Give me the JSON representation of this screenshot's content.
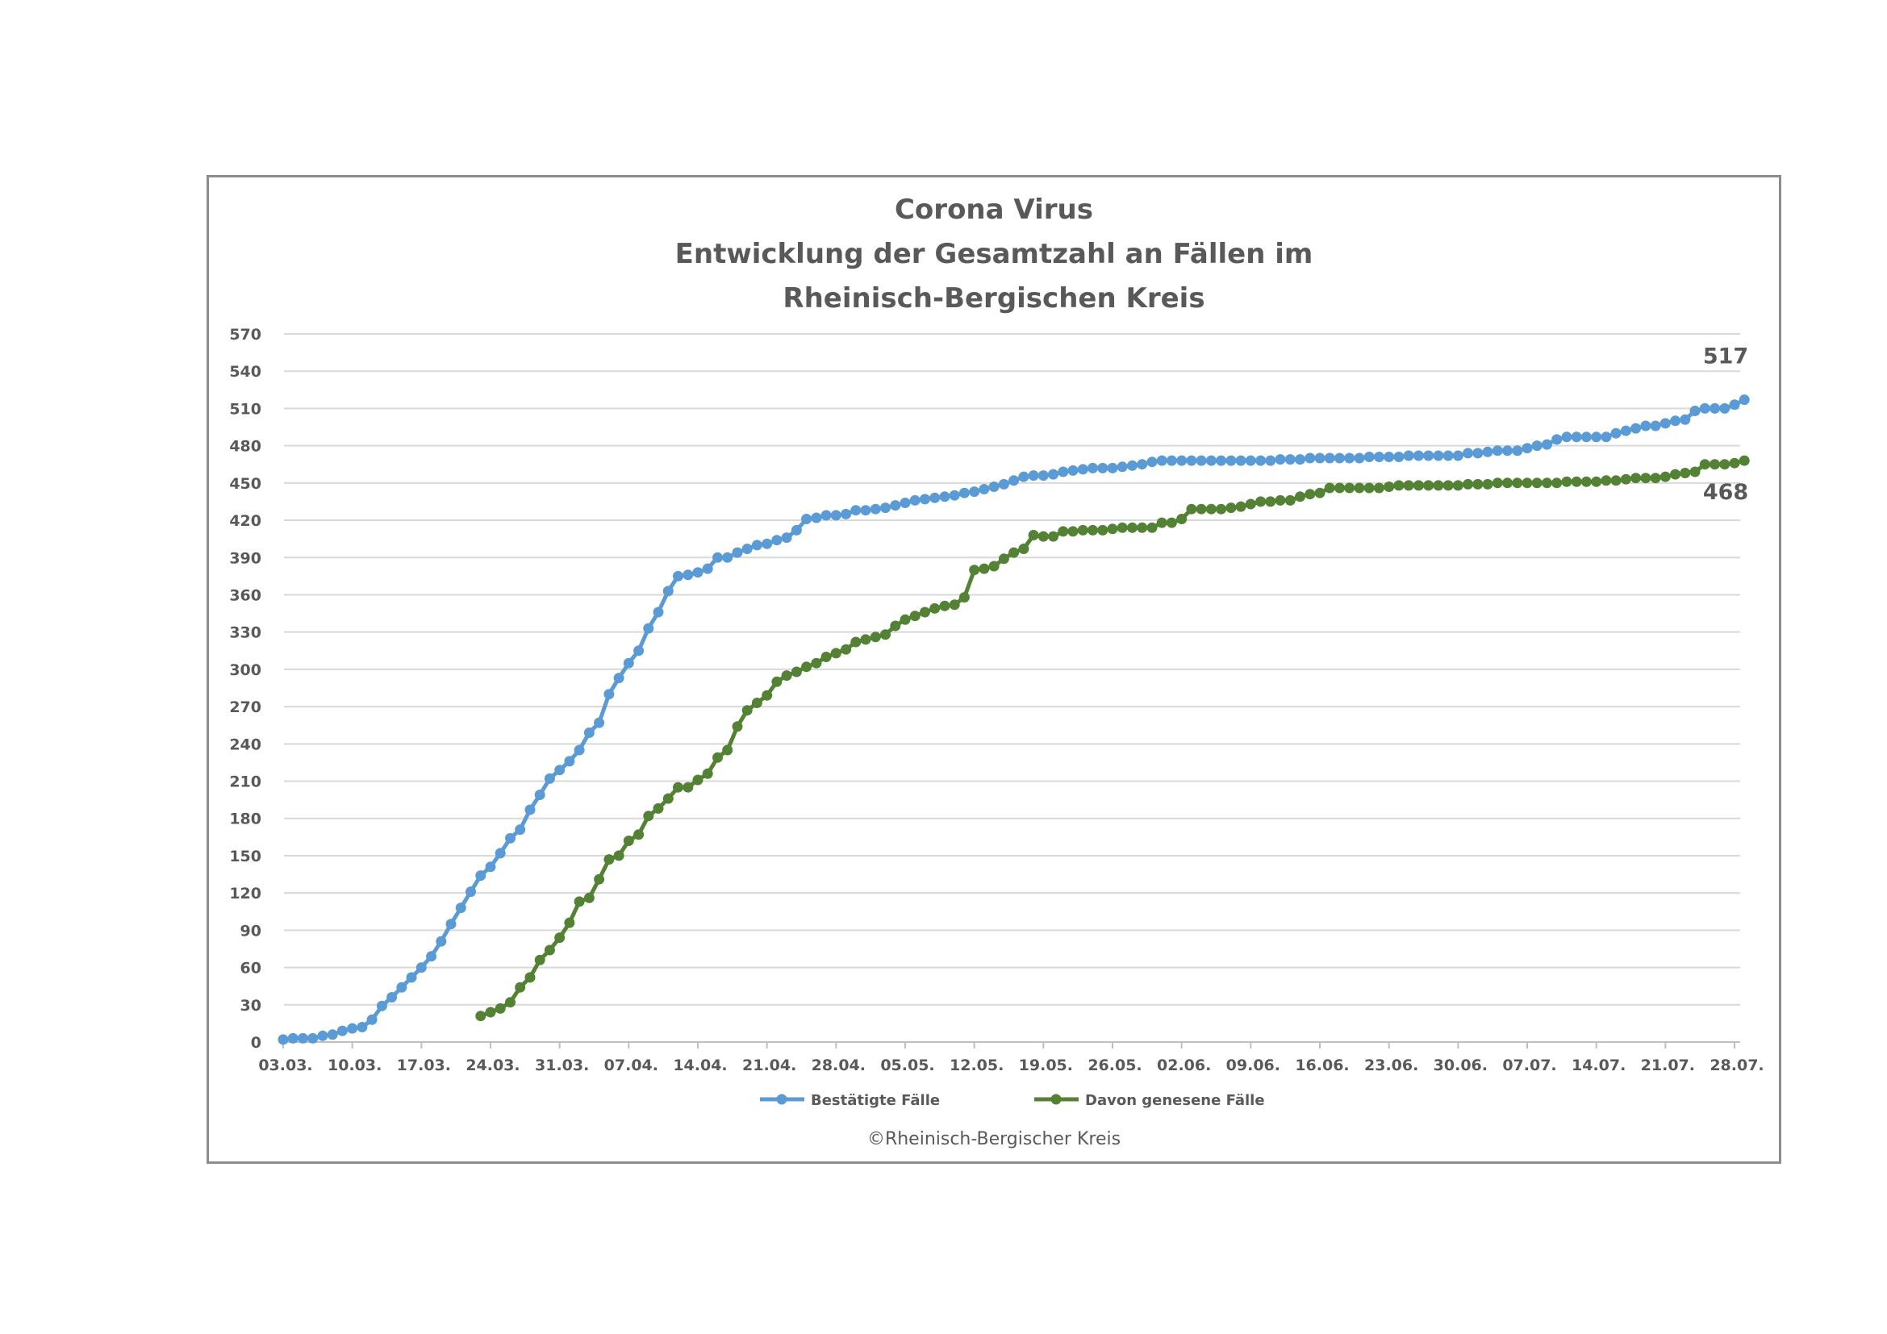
{
  "chart_data": {
    "type": "line",
    "title": [
      "Corona Virus",
      "Entwicklung der Gesamtzahl an Fällen im",
      "Rheinisch-Bergischen Kreis"
    ],
    "xlabel": "",
    "ylabel": "",
    "ylim": [
      0,
      570
    ],
    "y_ticks": [
      0,
      30,
      60,
      90,
      120,
      150,
      180,
      210,
      240,
      270,
      300,
      330,
      360,
      390,
      420,
      450,
      480,
      510,
      540,
      570
    ],
    "x_tick_labels": [
      "03.03.",
      "10.03.",
      "17.03.",
      "24.03.",
      "31.03.",
      "07.04.",
      "14.04.",
      "21.04.",
      "28.04.",
      "05.05.",
      "12.05.",
      "19.05.",
      "26.05.",
      "02.06.",
      "09.06.",
      "16.06.",
      "23.06.",
      "30.06.",
      "07.07.",
      "14.07.",
      "21.07.",
      "28.07."
    ],
    "x_range": [
      "2020-03-03",
      "2020-07-28"
    ],
    "grid": true,
    "legend_position": "bottom",
    "series": [
      {
        "name": "Bestätigte Fälle",
        "color": "#5b9bd5",
        "end_label": "517",
        "points": [
          [
            "2020-03-03",
            2
          ],
          [
            "2020-03-04",
            3
          ],
          [
            "2020-03-05",
            3
          ],
          [
            "2020-03-06",
            3
          ],
          [
            "2020-03-07",
            5
          ],
          [
            "2020-03-08",
            6
          ],
          [
            "2020-03-09",
            9
          ],
          [
            "2020-03-10",
            11
          ],
          [
            "2020-03-11",
            12
          ],
          [
            "2020-03-12",
            18
          ],
          [
            "2020-03-13",
            29
          ],
          [
            "2020-03-14",
            36
          ],
          [
            "2020-03-15",
            44
          ],
          [
            "2020-03-16",
            52
          ],
          [
            "2020-03-17",
            60
          ],
          [
            "2020-03-18",
            69
          ],
          [
            "2020-03-19",
            81
          ],
          [
            "2020-03-20",
            95
          ],
          [
            "2020-03-21",
            108
          ],
          [
            "2020-03-22",
            121
          ],
          [
            "2020-03-23",
            134
          ],
          [
            "2020-03-24",
            141
          ],
          [
            "2020-03-25",
            152
          ],
          [
            "2020-03-26",
            164
          ],
          [
            "2020-03-27",
            171
          ],
          [
            "2020-03-28",
            187
          ],
          [
            "2020-03-29",
            199
          ],
          [
            "2020-03-30",
            212
          ],
          [
            "2020-03-31",
            219
          ],
          [
            "2020-04-01",
            226
          ],
          [
            "2020-04-02",
            235
          ],
          [
            "2020-04-03",
            249
          ],
          [
            "2020-04-04",
            257
          ],
          [
            "2020-04-05",
            280
          ],
          [
            "2020-04-06",
            293
          ],
          [
            "2020-04-07",
            305
          ],
          [
            "2020-04-08",
            315
          ],
          [
            "2020-04-09",
            333
          ],
          [
            "2020-04-10",
            346
          ],
          [
            "2020-04-11",
            363
          ],
          [
            "2020-04-12",
            375
          ],
          [
            "2020-04-13",
            376
          ],
          [
            "2020-04-14",
            378
          ],
          [
            "2020-04-15",
            381
          ],
          [
            "2020-04-16",
            390
          ],
          [
            "2020-04-17",
            390
          ],
          [
            "2020-04-18",
            394
          ],
          [
            "2020-04-19",
            397
          ],
          [
            "2020-04-20",
            400
          ],
          [
            "2020-04-21",
            401
          ],
          [
            "2020-04-22",
            404
          ],
          [
            "2020-04-23",
            406
          ],
          [
            "2020-04-24",
            412
          ],
          [
            "2020-04-25",
            421
          ],
          [
            "2020-04-26",
            422
          ],
          [
            "2020-04-27",
            424
          ],
          [
            "2020-04-28",
            424
          ],
          [
            "2020-04-29",
            425
          ],
          [
            "2020-04-30",
            428
          ],
          [
            "2020-05-01",
            428
          ],
          [
            "2020-05-02",
            429
          ],
          [
            "2020-05-03",
            430
          ],
          [
            "2020-05-04",
            432
          ],
          [
            "2020-05-05",
            434
          ],
          [
            "2020-05-06",
            436
          ],
          [
            "2020-05-07",
            437
          ],
          [
            "2020-05-08",
            438
          ],
          [
            "2020-05-09",
            439
          ],
          [
            "2020-05-10",
            440
          ],
          [
            "2020-05-11",
            442
          ],
          [
            "2020-05-12",
            443
          ],
          [
            "2020-05-13",
            445
          ],
          [
            "2020-05-14",
            447
          ],
          [
            "2020-05-15",
            449
          ],
          [
            "2020-05-16",
            452
          ],
          [
            "2020-05-17",
            455
          ],
          [
            "2020-05-18",
            456
          ],
          [
            "2020-05-19",
            456
          ],
          [
            "2020-05-20",
            457
          ],
          [
            "2020-05-21",
            459
          ],
          [
            "2020-05-22",
            460
          ],
          [
            "2020-05-23",
            461
          ],
          [
            "2020-05-24",
            462
          ],
          [
            "2020-05-25",
            462
          ],
          [
            "2020-05-26",
            462
          ],
          [
            "2020-05-27",
            463
          ],
          [
            "2020-05-28",
            464
          ],
          [
            "2020-05-29",
            465
          ],
          [
            "2020-05-30",
            467
          ],
          [
            "2020-05-31",
            468
          ],
          [
            "2020-06-01",
            468
          ],
          [
            "2020-06-02",
            468
          ],
          [
            "2020-06-03",
            468
          ],
          [
            "2020-06-04",
            468
          ],
          [
            "2020-06-05",
            468
          ],
          [
            "2020-06-06",
            468
          ],
          [
            "2020-06-07",
            468
          ],
          [
            "2020-06-08",
            468
          ],
          [
            "2020-06-09",
            468
          ],
          [
            "2020-06-10",
            468
          ],
          [
            "2020-06-11",
            468
          ],
          [
            "2020-06-12",
            469
          ],
          [
            "2020-06-13",
            469
          ],
          [
            "2020-06-14",
            469
          ],
          [
            "2020-06-15",
            470
          ],
          [
            "2020-06-16",
            470
          ],
          [
            "2020-06-17",
            470
          ],
          [
            "2020-06-18",
            470
          ],
          [
            "2020-06-19",
            470
          ],
          [
            "2020-06-20",
            470
          ],
          [
            "2020-06-21",
            471
          ],
          [
            "2020-06-22",
            471
          ],
          [
            "2020-06-23",
            471
          ],
          [
            "2020-06-24",
            471
          ],
          [
            "2020-06-25",
            472
          ],
          [
            "2020-06-26",
            472
          ],
          [
            "2020-06-27",
            472
          ],
          [
            "2020-06-28",
            472
          ],
          [
            "2020-06-29",
            472
          ],
          [
            "2020-06-30",
            472
          ],
          [
            "2020-07-01",
            474
          ],
          [
            "2020-07-02",
            474
          ],
          [
            "2020-07-03",
            475
          ],
          [
            "2020-07-04",
            476
          ],
          [
            "2020-07-05",
            476
          ],
          [
            "2020-07-06",
            476
          ],
          [
            "2020-07-07",
            478
          ],
          [
            "2020-07-08",
            480
          ],
          [
            "2020-07-09",
            481
          ],
          [
            "2020-07-10",
            485
          ],
          [
            "2020-07-11",
            487
          ],
          [
            "2020-07-12",
            487
          ],
          [
            "2020-07-13",
            487
          ],
          [
            "2020-07-14",
            487
          ],
          [
            "2020-07-15",
            487
          ],
          [
            "2020-07-16",
            490
          ],
          [
            "2020-07-17",
            492
          ],
          [
            "2020-07-18",
            494
          ],
          [
            "2020-07-19",
            496
          ],
          [
            "2020-07-20",
            496
          ],
          [
            "2020-07-21",
            498
          ],
          [
            "2020-07-22",
            500
          ],
          [
            "2020-07-23",
            501
          ],
          [
            "2020-07-24",
            508
          ],
          [
            "2020-07-25",
            510
          ],
          [
            "2020-07-26",
            510
          ],
          [
            "2020-07-27",
            510
          ],
          [
            "2020-07-28",
            513
          ],
          [
            "2020-07-29",
            517
          ]
        ]
      },
      {
        "name": "Davon genesene Fälle",
        "color": "#548235",
        "end_label": "468",
        "points": [
          [
            "2020-03-23",
            21
          ],
          [
            "2020-03-24",
            24
          ],
          [
            "2020-03-25",
            27
          ],
          [
            "2020-03-26",
            32
          ],
          [
            "2020-03-27",
            44
          ],
          [
            "2020-03-28",
            52
          ],
          [
            "2020-03-29",
            66
          ],
          [
            "2020-03-30",
            74
          ],
          [
            "2020-03-31",
            84
          ],
          [
            "2020-04-01",
            96
          ],
          [
            "2020-04-02",
            113
          ],
          [
            "2020-04-03",
            116
          ],
          [
            "2020-04-04",
            131
          ],
          [
            "2020-04-05",
            147
          ],
          [
            "2020-04-06",
            150
          ],
          [
            "2020-04-07",
            162
          ],
          [
            "2020-04-08",
            167
          ],
          [
            "2020-04-09",
            182
          ],
          [
            "2020-04-10",
            188
          ],
          [
            "2020-04-11",
            196
          ],
          [
            "2020-04-12",
            205
          ],
          [
            "2020-04-13",
            205
          ],
          [
            "2020-04-14",
            211
          ],
          [
            "2020-04-15",
            216
          ],
          [
            "2020-04-16",
            229
          ],
          [
            "2020-04-17",
            235
          ],
          [
            "2020-04-18",
            254
          ],
          [
            "2020-04-19",
            267
          ],
          [
            "2020-04-20",
            273
          ],
          [
            "2020-04-21",
            279
          ],
          [
            "2020-04-22",
            290
          ],
          [
            "2020-04-23",
            295
          ],
          [
            "2020-04-24",
            298
          ],
          [
            "2020-04-25",
            302
          ],
          [
            "2020-04-26",
            305
          ],
          [
            "2020-04-27",
            310
          ],
          [
            "2020-04-28",
            313
          ],
          [
            "2020-04-29",
            316
          ],
          [
            "2020-04-30",
            322
          ],
          [
            "2020-05-01",
            324
          ],
          [
            "2020-05-02",
            326
          ],
          [
            "2020-05-03",
            328
          ],
          [
            "2020-05-04",
            335
          ],
          [
            "2020-05-05",
            340
          ],
          [
            "2020-05-06",
            343
          ],
          [
            "2020-05-07",
            346
          ],
          [
            "2020-05-08",
            349
          ],
          [
            "2020-05-09",
            351
          ],
          [
            "2020-05-10",
            352
          ],
          [
            "2020-05-11",
            358
          ],
          [
            "2020-05-12",
            380
          ],
          [
            "2020-05-13",
            381
          ],
          [
            "2020-05-14",
            383
          ],
          [
            "2020-05-15",
            389
          ],
          [
            "2020-05-16",
            394
          ],
          [
            "2020-05-17",
            397
          ],
          [
            "2020-05-18",
            408
          ],
          [
            "2020-05-19",
            407
          ],
          [
            "2020-05-20",
            407
          ],
          [
            "2020-05-21",
            411
          ],
          [
            "2020-05-22",
            411
          ],
          [
            "2020-05-23",
            412
          ],
          [
            "2020-05-24",
            412
          ],
          [
            "2020-05-25",
            412
          ],
          [
            "2020-05-26",
            413
          ],
          [
            "2020-05-27",
            414
          ],
          [
            "2020-05-28",
            414
          ],
          [
            "2020-05-29",
            414
          ],
          [
            "2020-05-30",
            414
          ],
          [
            "2020-05-31",
            418
          ],
          [
            "2020-06-01",
            418
          ],
          [
            "2020-06-02",
            421
          ],
          [
            "2020-06-03",
            429
          ],
          [
            "2020-06-04",
            429
          ],
          [
            "2020-06-05",
            429
          ],
          [
            "2020-06-06",
            429
          ],
          [
            "2020-06-07",
            430
          ],
          [
            "2020-06-08",
            431
          ],
          [
            "2020-06-09",
            433
          ],
          [
            "2020-06-10",
            435
          ],
          [
            "2020-06-11",
            435
          ],
          [
            "2020-06-12",
            436
          ],
          [
            "2020-06-13",
            436
          ],
          [
            "2020-06-14",
            439
          ],
          [
            "2020-06-15",
            441
          ],
          [
            "2020-06-16",
            442
          ],
          [
            "2020-06-17",
            446
          ],
          [
            "2020-06-18",
            446
          ],
          [
            "2020-06-19",
            446
          ],
          [
            "2020-06-20",
            446
          ],
          [
            "2020-06-21",
            446
          ],
          [
            "2020-06-22",
            446
          ],
          [
            "2020-06-23",
            447
          ],
          [
            "2020-06-24",
            448
          ],
          [
            "2020-06-25",
            448
          ],
          [
            "2020-06-26",
            448
          ],
          [
            "2020-06-27",
            448
          ],
          [
            "2020-06-28",
            448
          ],
          [
            "2020-06-29",
            448
          ],
          [
            "2020-06-30",
            448
          ],
          [
            "2020-07-01",
            449
          ],
          [
            "2020-07-02",
            449
          ],
          [
            "2020-07-03",
            449
          ],
          [
            "2020-07-04",
            450
          ],
          [
            "2020-07-05",
            450
          ],
          [
            "2020-07-06",
            450
          ],
          [
            "2020-07-07",
            450
          ],
          [
            "2020-07-08",
            450
          ],
          [
            "2020-07-09",
            450
          ],
          [
            "2020-07-10",
            450
          ],
          [
            "2020-07-11",
            451
          ],
          [
            "2020-07-12",
            451
          ],
          [
            "2020-07-13",
            451
          ],
          [
            "2020-07-14",
            451
          ],
          [
            "2020-07-15",
            452
          ],
          [
            "2020-07-16",
            452
          ],
          [
            "2020-07-17",
            453
          ],
          [
            "2020-07-18",
            454
          ],
          [
            "2020-07-19",
            454
          ],
          [
            "2020-07-20",
            454
          ],
          [
            "2020-07-21",
            455
          ],
          [
            "2020-07-22",
            457
          ],
          [
            "2020-07-23",
            458
          ],
          [
            "2020-07-24",
            459
          ],
          [
            "2020-07-25",
            465
          ],
          [
            "2020-07-26",
            465
          ],
          [
            "2020-07-27",
            465
          ],
          [
            "2020-07-28",
            466
          ],
          [
            "2020-07-29",
            468
          ]
        ]
      }
    ]
  },
  "footer": {
    "copyright": "©Rheinisch-Bergischer Kreis"
  }
}
